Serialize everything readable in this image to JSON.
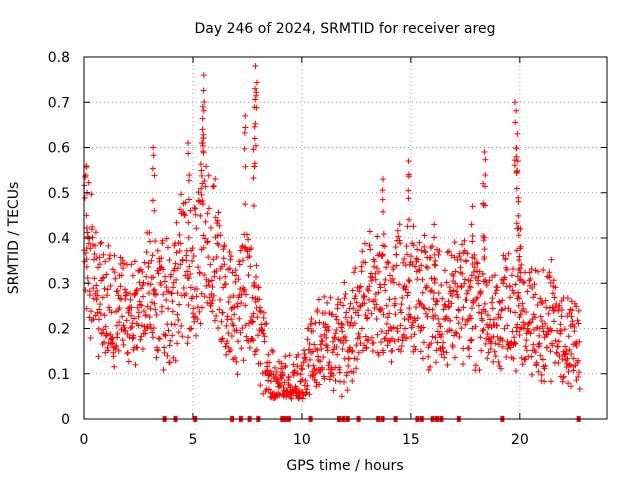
{
  "chart_data": {
    "type": "scatter",
    "title": "Day 246 of 2024, SRMTID for receiver areg",
    "xlabel": "GPS time / hours",
    "ylabel": "SRMTID / TECUs",
    "xlim": [
      0,
      24
    ],
    "ylim": [
      0,
      0.8
    ],
    "xticks": [
      0,
      5,
      10,
      15,
      20
    ],
    "yticks": [
      0,
      0.1,
      0.2,
      0.3,
      0.4,
      0.5,
      0.6,
      0.7,
      0.8
    ],
    "xtick_labels": [
      "0",
      "5",
      "10",
      "15",
      "20"
    ],
    "ytick_labels": [
      "0",
      "0.1",
      "0.2",
      "0.3",
      "0.4",
      "0.5",
      "0.6",
      "0.7",
      "0.8"
    ],
    "grid": true,
    "color": "#ff0000",
    "marker": "plus",
    "seed": 246,
    "profile": [
      [
        0,
        0.43
      ],
      [
        0.5,
        0.27
      ],
      [
        1.0,
        0.24
      ],
      [
        1.5,
        0.25
      ],
      [
        2.0,
        0.26
      ],
      [
        2.5,
        0.23
      ],
      [
        3.0,
        0.29
      ],
      [
        3.5,
        0.26
      ],
      [
        4.0,
        0.25
      ],
      [
        4.5,
        0.35
      ],
      [
        5.0,
        0.32
      ],
      [
        5.5,
        0.4
      ],
      [
        6.0,
        0.36
      ],
      [
        6.5,
        0.26
      ],
      [
        7.0,
        0.23
      ],
      [
        7.5,
        0.28
      ],
      [
        8.0,
        0.2
      ],
      [
        8.5,
        0.09
      ],
      [
        9.0,
        0.07
      ],
      [
        9.5,
        0.06
      ],
      [
        10.0,
        0.07
      ],
      [
        10.5,
        0.15
      ],
      [
        11.0,
        0.17
      ],
      [
        11.5,
        0.15
      ],
      [
        12.0,
        0.18
      ],
      [
        12.5,
        0.22
      ],
      [
        13.0,
        0.27
      ],
      [
        13.5,
        0.28
      ],
      [
        14.0,
        0.26
      ],
      [
        14.5,
        0.3
      ],
      [
        15.0,
        0.28
      ],
      [
        15.5,
        0.27
      ],
      [
        16.0,
        0.25
      ],
      [
        16.5,
        0.24
      ],
      [
        17.0,
        0.27
      ],
      [
        17.5,
        0.26
      ],
      [
        18.0,
        0.24
      ],
      [
        18.5,
        0.23
      ],
      [
        19.0,
        0.2
      ],
      [
        19.5,
        0.26
      ],
      [
        20.0,
        0.24
      ],
      [
        20.5,
        0.22
      ],
      [
        21.0,
        0.2
      ],
      [
        21.5,
        0.22
      ],
      [
        22.0,
        0.17
      ],
      [
        22.5,
        0.16
      ],
      [
        22.75,
        0.16
      ]
    ],
    "spikes": [
      {
        "x": 0.1,
        "y": 0.45
      },
      {
        "x": 3.2,
        "y": 0.6
      },
      {
        "x": 4.8,
        "y": 0.61
      },
      {
        "x": 5.5,
        "y": 0.76
      },
      {
        "x": 5.45,
        "y": 0.69
      },
      {
        "x": 5.4,
        "y": 0.64
      },
      {
        "x": 7.4,
        "y": 0.67
      },
      {
        "x": 7.9,
        "y": 0.78
      },
      {
        "x": 7.85,
        "y": 0.73
      },
      {
        "x": 7.8,
        "y": 0.62
      },
      {
        "x": 13.7,
        "y": 0.53
      },
      {
        "x": 14.9,
        "y": 0.57
      },
      {
        "x": 16.1,
        "y": 0.43
      },
      {
        "x": 17.8,
        "y": 0.47
      },
      {
        "x": 18.4,
        "y": 0.59
      },
      {
        "x": 18.35,
        "y": 0.52
      },
      {
        "x": 19.8,
        "y": 0.7
      },
      {
        "x": 19.85,
        "y": 0.63
      },
      {
        "x": 19.9,
        "y": 0.57
      },
      {
        "x": 19.95,
        "y": 0.48
      },
      {
        "x": 20.0,
        "y": 0.42
      }
    ],
    "zero_points_x": [
      3.7,
      4.2,
      5.1,
      6.8,
      7.2,
      7.6,
      8.0,
      9.1,
      9.25,
      9.4,
      10.4,
      11.7,
      11.9,
      12.1,
      12.6,
      13.5,
      13.7,
      14.3,
      15.3,
      15.5,
      16.0,
      16.2,
      16.4,
      17.2,
      19.2,
      22.7
    ]
  }
}
